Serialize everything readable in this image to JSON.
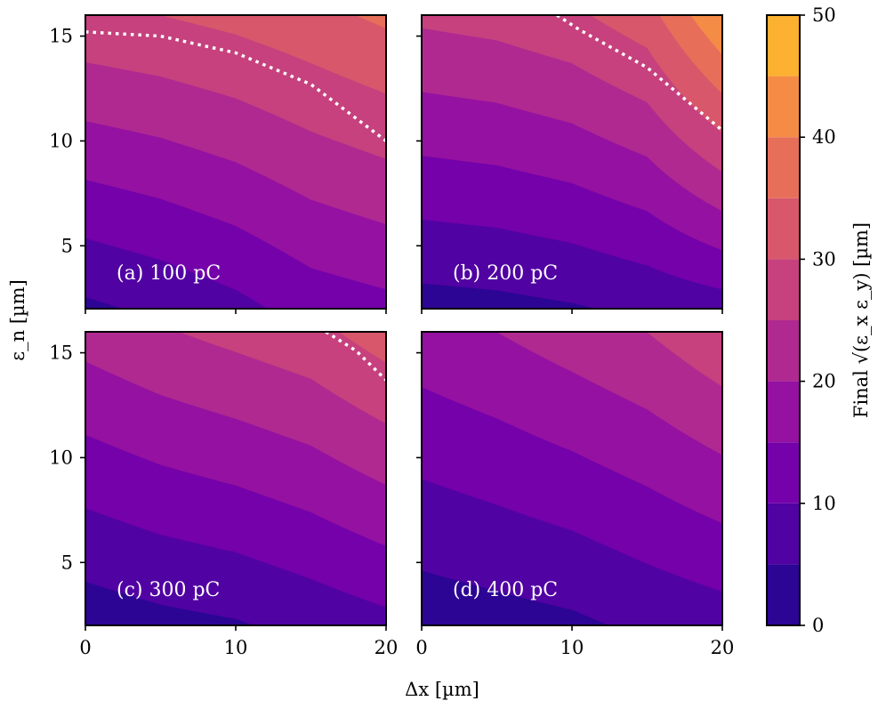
{
  "chart_data": {
    "type": "contourf",
    "xlabel": "Δx [µm]",
    "ylabel": "ε_n [µm]",
    "x_ticks": [
      "0",
      "10",
      "20"
    ],
    "y_ticks": [
      "5",
      "10",
      "15"
    ],
    "xlim": [
      0,
      20
    ],
    "ylim": [
      2,
      16
    ],
    "colorbar": {
      "label": "Final √(ε_x ε_y) [µm]",
      "range": [
        0,
        50
      ],
      "ticks": [
        "0",
        "10",
        "20",
        "30",
        "40",
        "50"
      ],
      "levels": [
        0,
        5,
        10,
        15,
        20,
        25,
        30,
        35,
        40,
        45,
        50
      ],
      "colors": [
        "#2c0594",
        "#5102a3",
        "#7401aa",
        "#9511a1",
        "#b02991",
        "#c6417d",
        "#d8576b",
        "#e76f5a",
        "#f58c46",
        "#fdb130",
        "#f6e626"
      ]
    },
    "dotted_contour_level": 30,
    "panels": [
      {
        "label": "(a) 100 pC",
        "charge_pC": 100,
        "x": [
          0,
          5,
          10,
          15,
          20
        ],
        "y": [
          2,
          16
        ],
        "bottom_edge_emittance": [
          4.0,
          6.0,
          8.5,
          12.0,
          13.5
        ],
        "top_edge_emittance": [
          29.0,
          30.0,
          31.5,
          33.5,
          36.0
        ],
        "dotted_contour": [
          [
            0,
            15.2
          ],
          [
            5,
            15.0
          ],
          [
            10,
            14.2
          ],
          [
            15,
            12.7
          ],
          [
            20,
            10.0
          ]
        ]
      },
      {
        "label": "(b) 200 pC",
        "charge_pC": 200,
        "x": [
          0,
          5,
          10,
          15,
          20
        ],
        "y": [
          2,
          16
        ],
        "bottom_edge_emittance": [
          3.0,
          3.5,
          4.5,
          6.0,
          7.5
        ],
        "top_edge_emittance": [
          26.0,
          27.0,
          29.0,
          33.0,
          45.0
        ],
        "dotted_contour": [
          [
            9,
            16.0
          ],
          [
            10.5,
            15.3
          ],
          [
            15,
            13.5
          ],
          [
            20,
            10.5
          ]
        ]
      },
      {
        "label": "(c) 300 pC",
        "charge_pC": 300,
        "x": [
          0,
          5,
          10,
          15,
          20
        ],
        "y": [
          2,
          16
        ],
        "bottom_edge_emittance": [
          2.0,
          3.5,
          4.5,
          6.5,
          8.5
        ],
        "top_edge_emittance": [
          22.0,
          24.5,
          26.5,
          28.5,
          32.5
        ],
        "dotted_contour": [
          [
            16,
            16.0
          ],
          [
            18,
            15.1
          ],
          [
            20,
            13.7
          ]
        ]
      },
      {
        "label": "(d) 400 pC",
        "charge_pC": 400,
        "x": [
          0,
          5,
          10,
          15,
          20
        ],
        "y": [
          2,
          16
        ],
        "bottom_edge_emittance": [
          2.0,
          3.0,
          4.0,
          6.0,
          7.5
        ],
        "top_edge_emittance": [
          18.0,
          20.0,
          22.5,
          25.0,
          29.0
        ],
        "dotted_contour": []
      }
    ]
  }
}
